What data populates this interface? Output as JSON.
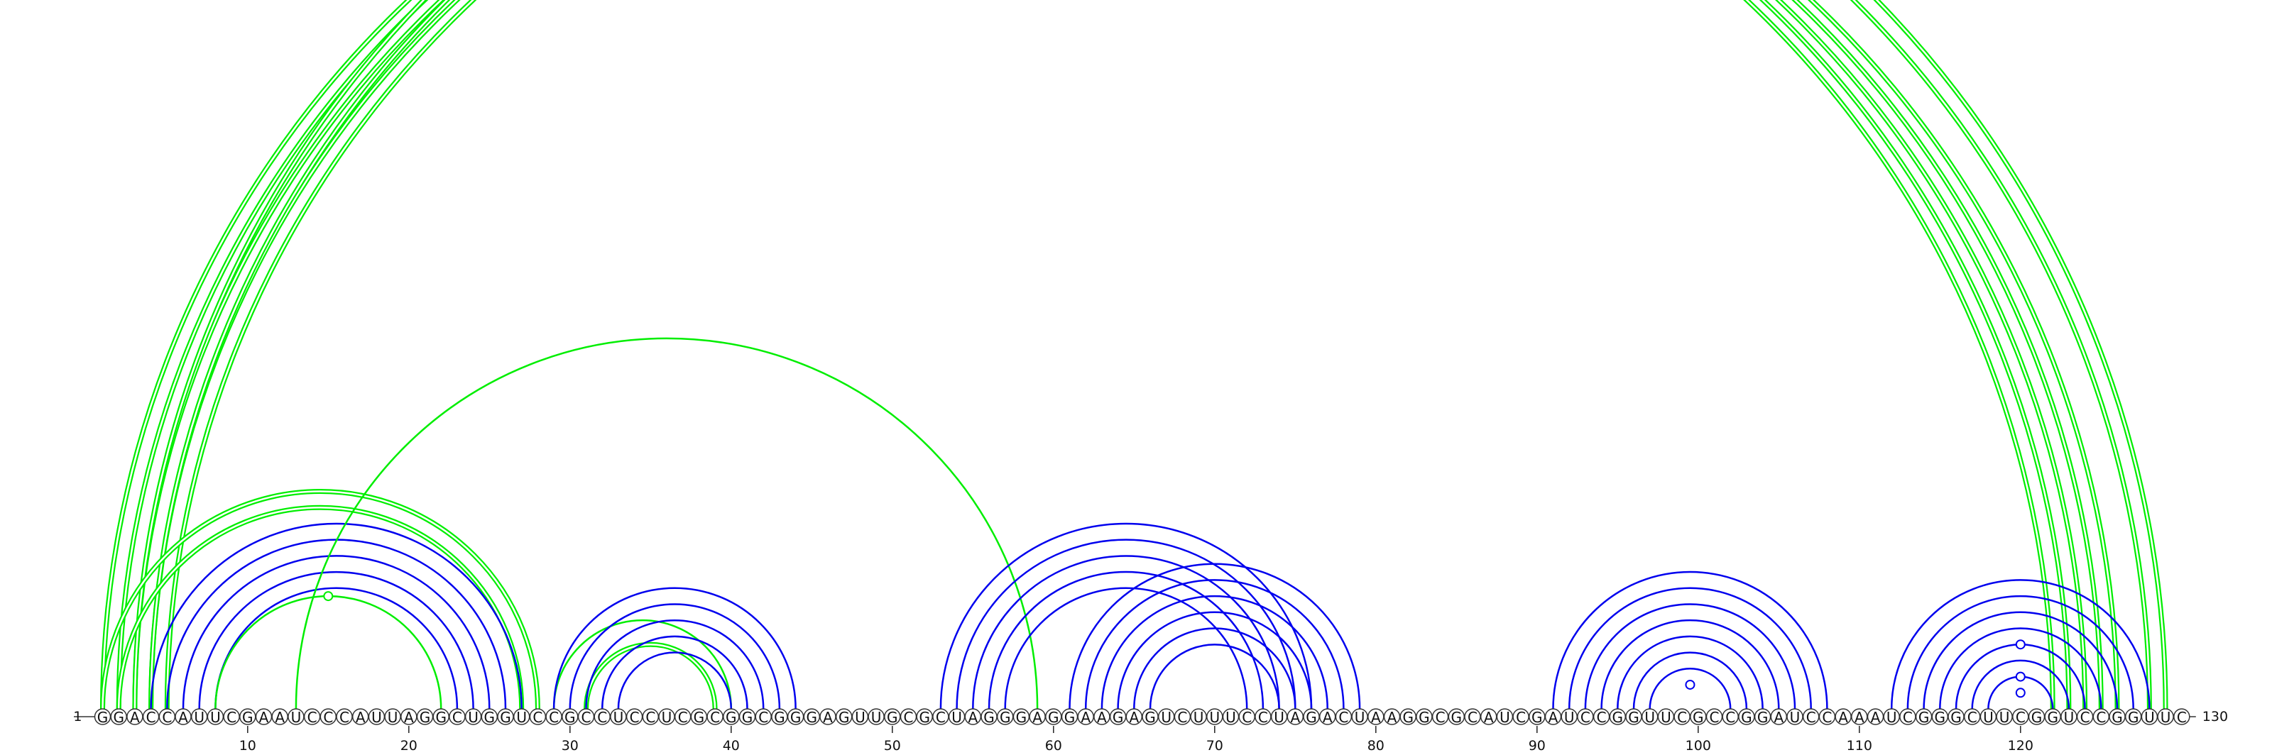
{
  "sequence": "GGACCAUUCGAAUCCCAUUAGGCUGGUCCGCCUCCUCGCGGCGGGAGUUGCGCUAGGGAGGAAGAGUCUUUCCUAGACUAAGGCGCAUCGAUCCGGUUCGCCGGAUCCAAAUCGGGCUUCGGUCCGGUUC",
  "start_label": "1",
  "end_label": "130",
  "ticks": [
    10,
    20,
    30,
    40,
    50,
    60,
    70,
    80,
    90,
    100,
    110,
    120
  ],
  "colors": {
    "stem": "#0000ee",
    "pseudoknot": "#00ee00"
  },
  "arc_groups": [
    {
      "color": "pseudoknot",
      "style": "double",
      "pairs": [
        [
          1,
          122
        ],
        [
          2,
          123
        ],
        [
          3,
          124
        ],
        [
          4,
          125
        ],
        [
          5,
          126
        ]
      ]
    },
    {
      "color": "pseudoknot",
      "style": "double",
      "pairs": [
        [
          3,
          129
        ],
        [
          4,
          128
        ]
      ]
    },
    {
      "color": "pseudoknot",
      "style": "double",
      "pairs": [
        [
          1,
          28
        ],
        [
          2,
          27
        ]
      ]
    },
    {
      "color": "stem",
      "style": "single",
      "pairs": [
        [
          4,
          27
        ],
        [
          5,
          26
        ],
        [
          6,
          25
        ],
        [
          7,
          24
        ],
        [
          8,
          23
        ]
      ]
    },
    {
      "color": "pseudoknot",
      "style": "single",
      "pairs": [
        [
          8,
          22
        ],
        [
          13,
          59
        ],
        [
          29,
          40
        ]
      ]
    },
    {
      "color": "pseudoknot",
      "style": "double",
      "pairs": [
        [
          31,
          39
        ]
      ]
    },
    {
      "color": "stem",
      "style": "single",
      "pairs": [
        [
          29,
          44
        ],
        [
          30,
          43
        ],
        [
          31,
          42
        ],
        [
          32,
          41
        ],
        [
          33,
          40
        ]
      ]
    },
    {
      "color": "stem",
      "style": "single",
      "pairs": [
        [
          53,
          76
        ],
        [
          54,
          75
        ],
        [
          55,
          74
        ],
        [
          56,
          73
        ],
        [
          57,
          72
        ]
      ]
    },
    {
      "color": "stem",
      "style": "single",
      "pairs": [
        [
          61,
          79
        ],
        [
          62,
          78
        ],
        [
          63,
          77
        ],
        [
          64,
          76
        ],
        [
          65,
          75
        ],
        [
          66,
          74
        ]
      ]
    },
    {
      "color": "stem",
      "style": "single",
      "pairs": [
        [
          91,
          108
        ],
        [
          92,
          107
        ],
        [
          93,
          106
        ],
        [
          94,
          105
        ],
        [
          95,
          104
        ],
        [
          96,
          103
        ],
        [
          97,
          102
        ]
      ]
    },
    {
      "color": "stem",
      "style": "single",
      "pairs": [
        [
          112,
          128
        ],
        [
          113,
          127
        ],
        [
          114,
          126
        ],
        [
          115,
          125
        ],
        [
          116,
          124
        ],
        [
          117,
          123
        ],
        [
          118,
          122
        ]
      ]
    }
  ],
  "markers": [
    {
      "color": "pseudoknot",
      "pair": [
        2,
        129
      ]
    },
    {
      "color": "pseudoknot",
      "pair": [
        8,
        22
      ]
    },
    {
      "color": "stem",
      "pair": [
        98,
        101
      ]
    },
    {
      "color": "stem",
      "pair": [
        116,
        124
      ]
    },
    {
      "color": "stem",
      "pair": [
        118,
        122
      ]
    },
    {
      "color": "stem",
      "pair": [
        119,
        121
      ]
    }
  ]
}
